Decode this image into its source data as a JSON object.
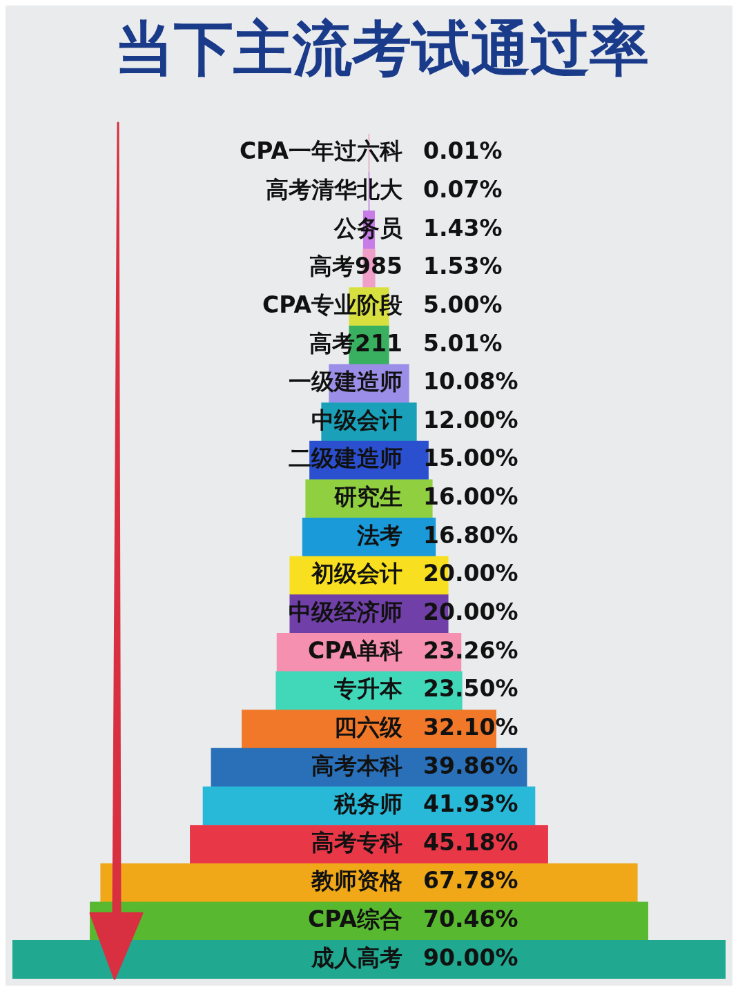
{
  "chart_data": {
    "type": "other",
    "title": "当下主流考试通过率",
    "categories": [
      "CPA一年过六科",
      "高考清华北大",
      "公务员",
      "高考985",
      "CPA专业阶段",
      "高考211",
      "一级建造师",
      "中级会计",
      "二级建造师",
      "研究生",
      "法考",
      "初级会计",
      "中级经济师",
      "CPA单科",
      "专升本",
      "四六级",
      "高考本科",
      "税务师",
      "高考专科",
      "教师资格",
      "CPA综合",
      "成人高考"
    ],
    "values": [
      0.01,
      0.07,
      1.43,
      1.53,
      5.0,
      5.01,
      10.08,
      12.0,
      15.0,
      16.0,
      16.8,
      20.0,
      20.0,
      23.26,
      23.5,
      32.1,
      39.86,
      41.93,
      45.18,
      67.78,
      70.46,
      90.0
    ],
    "value_labels": [
      "0.01%",
      "0.07%",
      "1.43%",
      "1.53%",
      "5.00%",
      "5.01%",
      "10.08%",
      "12.00%",
      "15.00%",
      "16.00%",
      "16.80%",
      "20.00%",
      "20.00%",
      "23.26%",
      "23.50%",
      "32.10%",
      "39.86%",
      "41.93%",
      "45.18%",
      "67.78%",
      "70.46%",
      "90.00%"
    ],
    "colors": [
      "#e0507a",
      "#c070e0",
      "#c77ce8",
      "#f0a0c8",
      "#d8e040",
      "#38b060",
      "#9b8ee8",
      "#1aa0b8",
      "#2a50d0",
      "#90d040",
      "#1a9ad8",
      "#f8e020",
      "#7040a8",
      "#f590b0",
      "#40d8b8",
      "#f07828",
      "#2a70b8",
      "#28b8d8",
      "#e83848",
      "#f0a818",
      "#58b830",
      "#20a890"
    ]
  }
}
